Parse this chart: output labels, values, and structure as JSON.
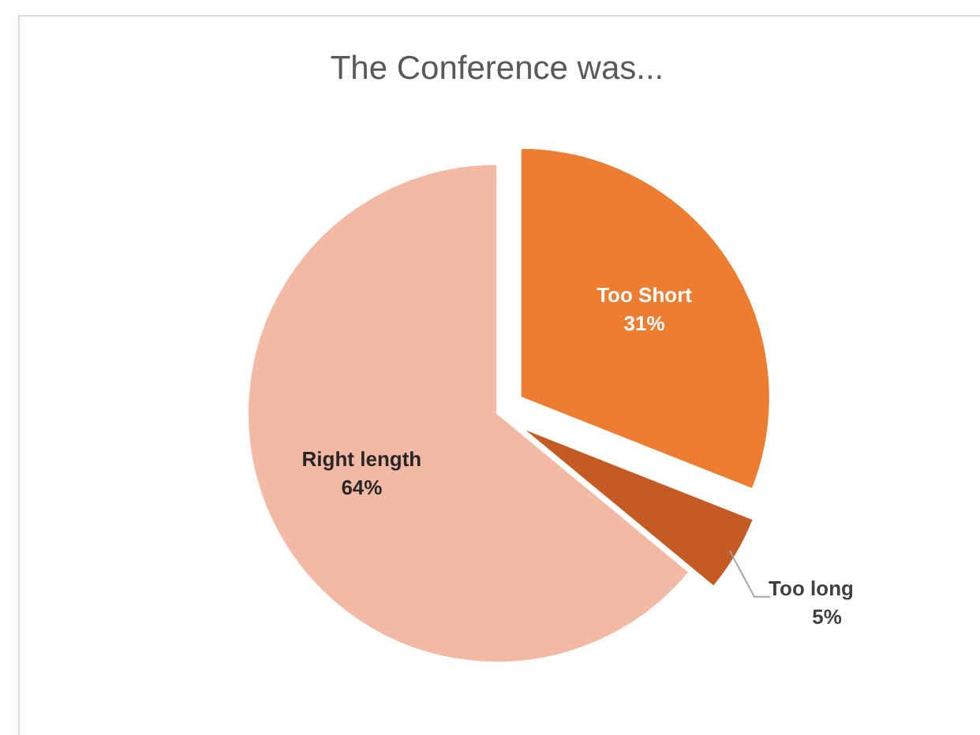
{
  "chart_data": {
    "type": "pie",
    "title": "The Conference was...",
    "categories": [
      "Too Short",
      "Too long",
      "Right length"
    ],
    "values": [
      31,
      5,
      64
    ],
    "colors": [
      "#ed7d31",
      "#c55a24",
      "#f4b9a4"
    ],
    "value_labels": [
      "31%",
      "5%",
      "64%"
    ]
  }
}
